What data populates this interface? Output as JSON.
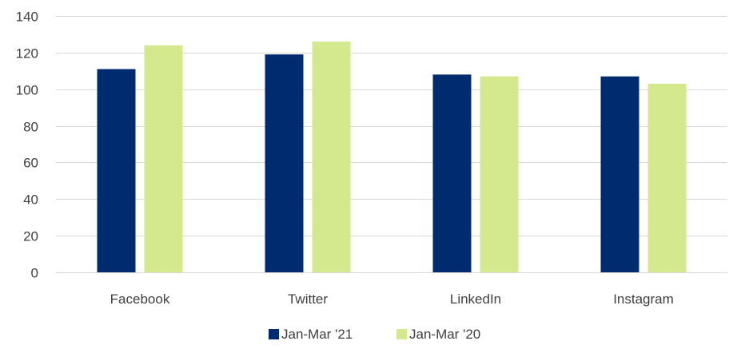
{
  "chart_data": {
    "type": "bar",
    "title": "",
    "xlabel": "",
    "ylabel": "",
    "categories": [
      "Facebook",
      "Twitter",
      "LinkedIn",
      "Instagram"
    ],
    "series": [
      {
        "name": "Jan-Mar '21",
        "color": "#002b6f",
        "values": [
          111,
          119,
          108,
          107
        ]
      },
      {
        "name": "Jan-Mar '20",
        "color": "#d4e98e",
        "values": [
          124,
          126,
          107,
          103
        ]
      }
    ],
    "ylim": [
      0,
      140
    ],
    "yticks": [
      0,
      20,
      40,
      60,
      80,
      100,
      120,
      140
    ],
    "grid": true,
    "legend": "bottom"
  }
}
